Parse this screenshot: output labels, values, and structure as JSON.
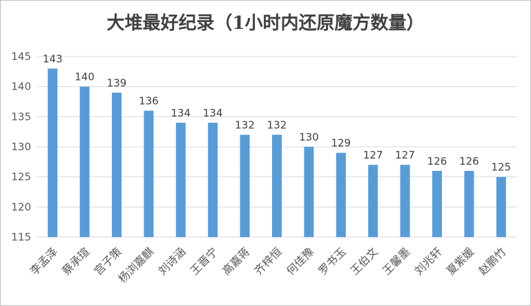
{
  "chart_data": {
    "type": "bar",
    "title": "大堆最好纪录（1小时内还原魔方数量）",
    "categories": [
      "李孟泽",
      "蔡承瑄",
      "宫子策",
      "杨浏嘉麒",
      "刘诗涵",
      "王晋宁",
      "高嘉蒋",
      "齐梓恒",
      "何佳豫",
      "罗书玉",
      "王伯文",
      "王馨墨",
      "刘兆轩",
      "夏紫媛",
      "赵鹏竹"
    ],
    "values": [
      143,
      140,
      139,
      136,
      134,
      134,
      132,
      132,
      130,
      129,
      127,
      127,
      126,
      126,
      125
    ],
    "ylim": [
      115,
      145
    ],
    "yticks": [
      115,
      120,
      125,
      130,
      135,
      140,
      145
    ],
    "grid": true,
    "bar_color": "#5b9bd5",
    "xlabel": "",
    "ylabel": ""
  }
}
